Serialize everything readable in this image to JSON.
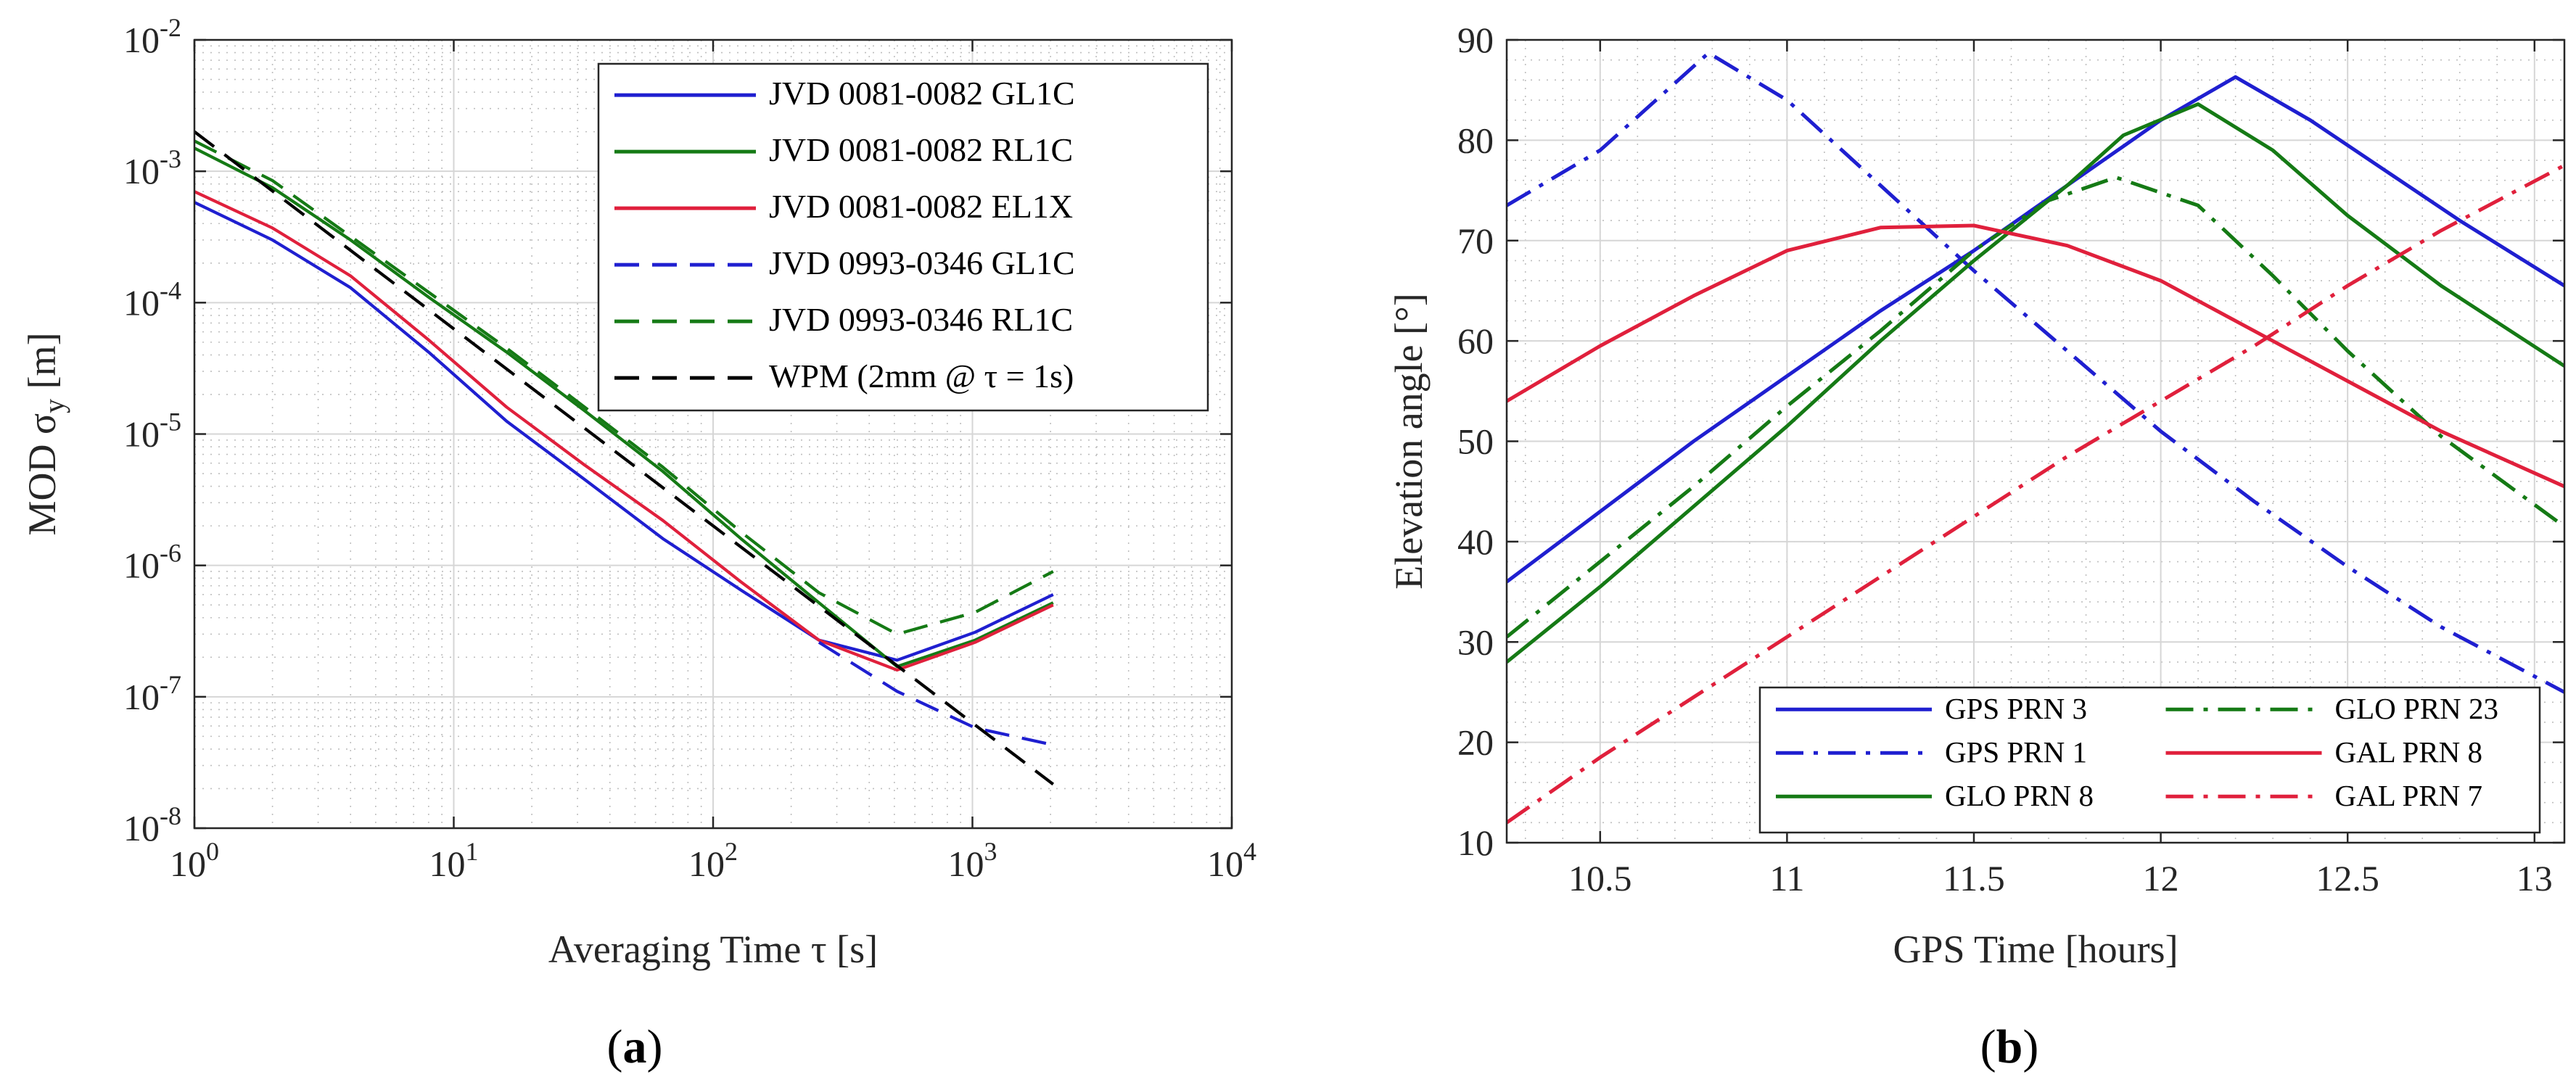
{
  "chart_data": [
    {
      "type": "line",
      "panel_label": "a",
      "xlabel": "Averaging Time τ [s]",
      "ylabel": "MOD σ_y [m]",
      "xscale": "log",
      "yscale": "log",
      "xlim": [
        1,
        10000
      ],
      "ylim": [
        1e-08,
        0.01
      ],
      "x_ticks": [
        1,
        10,
        100,
        1000,
        10000
      ],
      "y_ticks": [
        1e-08,
        1e-07,
        1e-06,
        1e-05,
        0.0001,
        0.001,
        0.01
      ],
      "x_tick_labels": [
        {
          "base": "10",
          "exp": "0"
        },
        {
          "base": "10",
          "exp": "1"
        },
        {
          "base": "10",
          "exp": "2"
        },
        {
          "base": "10",
          "exp": "3"
        },
        {
          "base": "10",
          "exp": "4"
        }
      ],
      "y_tick_labels": [
        {
          "base": "10",
          "exp": "-8"
        },
        {
          "base": "10",
          "exp": "-7"
        },
        {
          "base": "10",
          "exp": "-6"
        },
        {
          "base": "10",
          "exp": "-5"
        },
        {
          "base": "10",
          "exp": "-4"
        },
        {
          "base": "10",
          "exp": "-3"
        },
        {
          "base": "10",
          "exp": "-2"
        }
      ],
      "grid": true,
      "legend_position": "top-right",
      "series": [
        {
          "name": "JVD 0081-0082 GL1C",
          "color": "#1f1fd0",
          "dash": "solid",
          "points": [
            [
              1,
              0.00058
            ],
            [
              2,
              0.0003
            ],
            [
              4,
              0.00013
            ],
            [
              8,
              4.2e-05
            ],
            [
              16,
              1.25e-05
            ],
            [
              32,
              4.5e-06
            ],
            [
              64,
              1.6e-06
            ],
            [
              128,
              6.5e-07
            ],
            [
              256,
              2.7e-07
            ],
            [
              512,
              1.9e-07
            ],
            [
              1024,
              3.1e-07
            ],
            [
              2048,
              6e-07
            ]
          ]
        },
        {
          "name": "JVD 0081-0082 RL1C",
          "color": "#157a15",
          "dash": "solid",
          "points": [
            [
              1,
              0.0015
            ],
            [
              2,
              0.00075
            ],
            [
              4,
              0.0003
            ],
            [
              8,
              0.00011
            ],
            [
              16,
              4.2e-05
            ],
            [
              32,
              1.5e-05
            ],
            [
              64,
              5.2e-06
            ],
            [
              128,
              1.6e-06
            ],
            [
              256,
              5.2e-07
            ],
            [
              512,
              1.7e-07
            ],
            [
              1024,
              2.7e-07
            ],
            [
              2048,
              5.2e-07
            ]
          ]
        },
        {
          "name": "JVD 0081-0082 EL1X",
          "color": "#e0203c",
          "dash": "solid",
          "points": [
            [
              1,
              0.0007
            ],
            [
              2,
              0.00037
            ],
            [
              4,
              0.00016
            ],
            [
              8,
              5.2e-05
            ],
            [
              16,
              1.6e-05
            ],
            [
              32,
              5.8e-06
            ],
            [
              64,
              2.2e-06
            ],
            [
              128,
              7.5e-07
            ],
            [
              256,
              2.7e-07
            ],
            [
              512,
              1.6e-07
            ],
            [
              1024,
              2.6e-07
            ],
            [
              2048,
              5e-07
            ]
          ]
        },
        {
          "name": "JVD 0993-0346 GL1C",
          "color": "#1f1fd0",
          "dash": "dashed",
          "points": [
            [
              256,
              2.6e-07
            ],
            [
              512,
              1.1e-07
            ],
            [
              1024,
              5.8e-08
            ],
            [
              2048,
              4.3e-08
            ]
          ]
        },
        {
          "name": "JVD 0993-0346 RL1C",
          "color": "#157a15",
          "dash": "dashed",
          "points": [
            [
              1,
              0.0017
            ],
            [
              2,
              0.00085
            ],
            [
              4,
              0.00032
            ],
            [
              8,
              0.00012
            ],
            [
              16,
              4.5e-05
            ],
            [
              32,
              1.6e-05
            ],
            [
              64,
              5.6e-06
            ],
            [
              128,
              1.8e-06
            ],
            [
              256,
              6.2e-07
            ],
            [
              512,
              3e-07
            ],
            [
              1024,
              4.4e-07
            ],
            [
              2048,
              9e-07
            ]
          ]
        },
        {
          "name": "WPM (2mm @ τ = 1s)",
          "color": "#000000",
          "dash": "dashed",
          "points": [
            [
              1,
              0.002
            ],
            [
              10,
              6.32e-05
            ],
            [
              100,
              2e-06
            ],
            [
              1000,
              6.32e-08
            ],
            [
              2048,
              2.16e-08
            ]
          ]
        }
      ]
    },
    {
      "type": "line",
      "panel_label": "b",
      "xlabel": "GPS Time [hours]",
      "ylabel": "Elevation angle [°]",
      "xlim": [
        10.25,
        13.08
      ],
      "ylim": [
        10,
        90
      ],
      "x_ticks": [
        10.5,
        11,
        11.5,
        12,
        12.5,
        13
      ],
      "x_tick_labels": [
        "10.5",
        "11",
        "11.5",
        "12",
        "12.5",
        "13"
      ],
      "y_ticks": [
        10,
        20,
        30,
        40,
        50,
        60,
        70,
        80,
        90
      ],
      "y_tick_labels": [
        "10",
        "20",
        "30",
        "40",
        "50",
        "60",
        "70",
        "80",
        "90"
      ],
      "grid": true,
      "legend_position": "bottom-center",
      "series": [
        {
          "name": "GPS PRN 3",
          "color": "#1f1fd0",
          "dash": "solid",
          "points": [
            [
              10.25,
              36
            ],
            [
              10.5,
              43
            ],
            [
              10.75,
              50
            ],
            [
              11,
              56.5
            ],
            [
              11.25,
              63
            ],
            [
              11.5,
              69
            ],
            [
              11.75,
              75.5
            ],
            [
              12,
              82
            ],
            [
              12.2,
              86.3
            ],
            [
              12.4,
              82
            ],
            [
              12.6,
              77
            ],
            [
              12.8,
              72
            ],
            [
              13.08,
              65.5
            ]
          ]
        },
        {
          "name": "GPS PRN 1",
          "color": "#1f1fd0",
          "dash": "dashdot",
          "points": [
            [
              10.25,
              73.5
            ],
            [
              10.5,
              79
            ],
            [
              10.79,
              88.7
            ],
            [
              11,
              84
            ],
            [
              11.25,
              75.5
            ],
            [
              11.5,
              67
            ],
            [
              11.75,
              59
            ],
            [
              12,
              51
            ],
            [
              12.25,
              44
            ],
            [
              12.5,
              37.5
            ],
            [
              12.75,
              31.5
            ],
            [
              13.08,
              25
            ]
          ]
        },
        {
          "name": "GLO PRN 8",
          "color": "#157a15",
          "dash": "solid",
          "points": [
            [
              10.25,
              28
            ],
            [
              10.5,
              35.5
            ],
            [
              10.75,
              43.5
            ],
            [
              11,
              51.5
            ],
            [
              11.25,
              60
            ],
            [
              11.5,
              68
            ],
            [
              11.75,
              75.5
            ],
            [
              11.9,
              80.5
            ],
            [
              12.1,
              83.6
            ],
            [
              12.3,
              79
            ],
            [
              12.5,
              72.5
            ],
            [
              12.75,
              65.5
            ],
            [
              13.08,
              57.5
            ]
          ]
        },
        {
          "name": "GLO PRN 23",
          "color": "#157a15",
          "dash": "dashdot",
          "points": [
            [
              10.25,
              30.5
            ],
            [
              10.5,
              38
            ],
            [
              10.75,
              45.5
            ],
            [
              11,
              53.5
            ],
            [
              11.25,
              61
            ],
            [
              11.5,
              69
            ],
            [
              11.7,
              74
            ],
            [
              11.88,
              76.3
            ],
            [
              12.1,
              73.5
            ],
            [
              12.3,
              66.5
            ],
            [
              12.5,
              59
            ],
            [
              12.75,
              50.5
            ],
            [
              13.08,
              41.5
            ]
          ]
        },
        {
          "name": "GAL PRN 8",
          "color": "#e0203c",
          "dash": "solid",
          "points": [
            [
              10.25,
              54
            ],
            [
              10.5,
              59.5
            ],
            [
              10.75,
              64.5
            ],
            [
              11,
              69
            ],
            [
              11.25,
              71.3
            ],
            [
              11.5,
              71.5
            ],
            [
              11.75,
              69.5
            ],
            [
              12,
              66
            ],
            [
              12.25,
              61
            ],
            [
              12.5,
              56
            ],
            [
              12.75,
              51
            ],
            [
              13.08,
              45.5
            ]
          ]
        },
        {
          "name": "GAL PRN 7",
          "color": "#e0203c",
          "dash": "dashdot",
          "points": [
            [
              10.25,
              12
            ],
            [
              10.5,
              18.5
            ],
            [
              10.75,
              24.5
            ],
            [
              11,
              30.5
            ],
            [
              11.25,
              36.5
            ],
            [
              11.5,
              42.5
            ],
            [
              11.75,
              48.5
            ],
            [
              12,
              54
            ],
            [
              12.25,
              59.5
            ],
            [
              12.5,
              65.5
            ],
            [
              12.75,
              71
            ],
            [
              13.08,
              77.5
            ]
          ]
        }
      ]
    }
  ]
}
